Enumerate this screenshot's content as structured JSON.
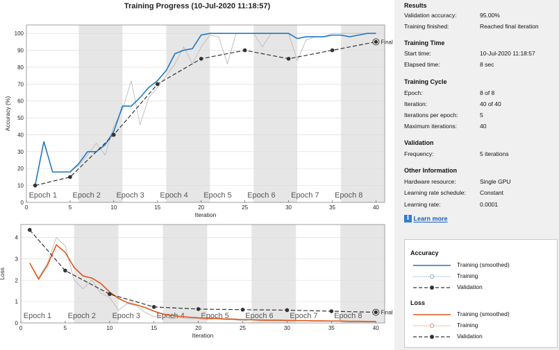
{
  "window_title": "Training Progress (10-Jul-2020 11:18:57)",
  "results": {
    "heading": "Results",
    "rows": [
      {
        "label": "Validation accuracy:",
        "value": "95.00%"
      },
      {
        "label": "Training finished:",
        "value": "Reached final iteration"
      }
    ]
  },
  "training_time": {
    "heading": "Training Time",
    "rows": [
      {
        "label": "Start time:",
        "value": "10-Jul-2020 11:18:57"
      },
      {
        "label": "Elapsed time:",
        "value": "8 sec"
      }
    ]
  },
  "training_cycle": {
    "heading": "Training Cycle",
    "rows": [
      {
        "label": "Epoch:",
        "value": "8 of 8"
      },
      {
        "label": "Iteration:",
        "value": "40 of 40"
      },
      {
        "label": "Iterations per epoch:",
        "value": "5"
      },
      {
        "label": "Maximum iterations:",
        "value": "40"
      }
    ]
  },
  "validation": {
    "heading": "Validation",
    "rows": [
      {
        "label": "Frequency:",
        "value": "5 iterations"
      }
    ]
  },
  "other_info": {
    "heading": "Other Information",
    "rows": [
      {
        "label": "Hardware resource:",
        "value": "Single GPU"
      },
      {
        "label": "Learning rate schedule:",
        "value": "Constant"
      },
      {
        "label": "Learning rate:",
        "value": "0.0001"
      }
    ]
  },
  "learn_more": "Learn more",
  "legend": {
    "accuracy_heading": "Accuracy",
    "loss_heading": "Loss",
    "training_smoothed": "Training (smoothed)",
    "training": "Training",
    "validation": "Validation"
  },
  "colors": {
    "accuracy_smoothed": "#1f77c4",
    "loss_smoothed": "#e0561a",
    "validation": "#333333",
    "raw_training": "#bbbbbb",
    "epoch_band": "#e6e6e6"
  },
  "chart_data": [
    {
      "type": "line",
      "ylabel": "Accuracy (%)",
      "xlabel": "Iteration",
      "xlim": [
        0,
        41
      ],
      "ylim": [
        0,
        105
      ],
      "xticks": [
        0,
        5,
        10,
        15,
        20,
        25,
        30,
        35,
        40
      ],
      "yticks": [
        0,
        10,
        20,
        30,
        40,
        50,
        60,
        70,
        80,
        90,
        100
      ],
      "epoch_labels": [
        "Epoch 1",
        "Epoch 2",
        "Epoch 3",
        "Epoch 4",
        "Epoch 5",
        "Epoch 6",
        "Epoch 7",
        "Epoch 8"
      ],
      "final_label": "Final",
      "series": [
        {
          "key": "training",
          "x": [
            1,
            2,
            3,
            4,
            5,
            6,
            7,
            8,
            9,
            10,
            11,
            12,
            13,
            14,
            15,
            16,
            17,
            18,
            19,
            20,
            21,
            22,
            23,
            24,
            25,
            26,
            27,
            28,
            29,
            30,
            31,
            32,
            33,
            34,
            35,
            36,
            37,
            38,
            39,
            40
          ],
          "values": [
            10,
            36,
            18,
            18,
            18,
            22,
            28,
            35,
            28,
            45,
            55,
            72,
            46,
            62,
            68,
            75,
            82,
            92,
            82,
            92,
            99,
            98,
            82,
            100,
            100,
            100,
            92,
            100,
            100,
            100,
            84,
            96,
            98,
            98,
            100,
            100,
            100,
            100,
            100,
            100
          ]
        },
        {
          "key": "training_smoothed",
          "x": [
            1,
            2,
            3,
            4,
            5,
            6,
            7,
            8,
            9,
            10,
            11,
            12,
            13,
            14,
            15,
            16,
            17,
            18,
            19,
            20,
            21,
            22,
            23,
            24,
            25,
            26,
            27,
            28,
            29,
            30,
            31,
            32,
            33,
            34,
            35,
            36,
            37,
            38,
            39,
            40
          ],
          "values": [
            10,
            36,
            18,
            18,
            18,
            23,
            30,
            30,
            34,
            42,
            57,
            57,
            62,
            68,
            72,
            78,
            88,
            90,
            91,
            99,
            100,
            100,
            100,
            100,
            100,
            100,
            100,
            100,
            100,
            100,
            97,
            98,
            98,
            98,
            99,
            99,
            98,
            99,
            100,
            100
          ]
        },
        {
          "key": "validation",
          "x": [
            1,
            5,
            10,
            15,
            20,
            25,
            30,
            35,
            40
          ],
          "values": [
            10,
            15,
            40,
            70,
            85,
            90,
            85,
            90,
            95
          ]
        }
      ]
    },
    {
      "type": "line",
      "ylabel": "Loss",
      "xlabel": "Iteration",
      "xlim": [
        0,
        41
      ],
      "ylim": [
        0,
        4.6
      ],
      "xticks": [
        0,
        5,
        10,
        15,
        20,
        25,
        30,
        35,
        40
      ],
      "yticks": [
        0,
        1,
        2,
        3,
        4
      ],
      "epoch_labels": [
        "Epoch 1",
        "Epoch 2",
        "Epoch 3",
        "Epoch 4",
        "Epoch 5",
        "Epoch 6",
        "Epoch 7",
        "Epoch 8"
      ],
      "final_label": "Final",
      "series": [
        {
          "key": "training",
          "x": [
            1,
            2,
            3,
            4,
            5,
            6,
            7,
            8,
            9,
            10,
            11,
            12,
            13,
            14,
            15,
            16,
            17,
            18,
            19,
            20,
            21,
            22,
            23,
            24,
            25,
            26,
            27,
            28,
            29,
            30,
            31,
            32,
            33,
            34,
            35,
            36,
            37,
            38,
            39,
            40
          ],
          "values": [
            2.8,
            2.1,
            2.8,
            4.0,
            3.6,
            2.0,
            1.6,
            2.0,
            1.4,
            1.2,
            0.6,
            0.9,
            0.8,
            0.5,
            0.3,
            0.3,
            0.2,
            0.25,
            0.2,
            0.2,
            0.15,
            0.2,
            0.15,
            0.15,
            0.1,
            0.15,
            0.1,
            0.1,
            0.1,
            0.1,
            0.1,
            0.1,
            0.08,
            0.08,
            0.08,
            0.08,
            0.05,
            0.05,
            0.05,
            0.05
          ]
        },
        {
          "key": "training_smoothed",
          "x": [
            1,
            2,
            3,
            4,
            5,
            6,
            7,
            8,
            9,
            10,
            11,
            12,
            13,
            14,
            15,
            16,
            17,
            18,
            19,
            20,
            21,
            22,
            23,
            24,
            25,
            26,
            27,
            28,
            29,
            30,
            31,
            32,
            33,
            34,
            35,
            36,
            37,
            38,
            39,
            40
          ],
          "values": [
            2.8,
            2.05,
            2.7,
            3.65,
            3.3,
            2.6,
            2.2,
            2.1,
            1.85,
            1.45,
            1.15,
            0.95,
            0.85,
            0.72,
            0.55,
            0.42,
            0.35,
            0.3,
            0.27,
            0.24,
            0.22,
            0.21,
            0.19,
            0.18,
            0.16,
            0.15,
            0.14,
            0.13,
            0.13,
            0.12,
            0.11,
            0.11,
            0.1,
            0.1,
            0.09,
            0.09,
            0.08,
            0.08,
            0.07,
            0.07
          ]
        },
        {
          "key": "validation",
          "x": [
            1,
            5,
            10,
            15,
            20,
            25,
            30,
            35,
            40
          ],
          "values": [
            4.35,
            2.45,
            1.35,
            0.75,
            0.65,
            0.62,
            0.6,
            0.55,
            0.5
          ]
        }
      ]
    }
  ]
}
